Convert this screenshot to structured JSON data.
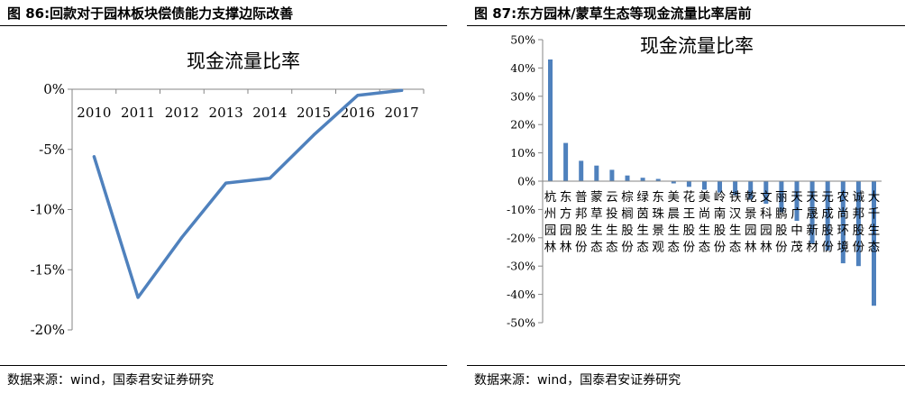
{
  "left": {
    "figure_title": "图 86:回款对于园林板块偿债能力支撑边际改善",
    "source": "数据来源：wind，国泰君安证券研究"
  },
  "right": {
    "figure_title": "图 87:东方园林/蒙草生态等现金流量比率居前",
    "source": "数据来源：wind，国泰君安证券研究"
  },
  "colors": {
    "series": "#4f81bd",
    "axis": "#868686",
    "text": "#000000"
  },
  "chart_data": [
    {
      "type": "line",
      "title": "现金流量比率",
      "xlabel": "",
      "ylabel": "",
      "categories": [
        "2010",
        "2011",
        "2012",
        "2013",
        "2014",
        "2015",
        "2016",
        "2017"
      ],
      "series": [
        {
          "values": [
            -5.6,
            -17.3,
            -12.3,
            -7.8,
            -7.4,
            -3.8,
            -0.5,
            -0.1
          ]
        }
      ],
      "ylim": [
        -20,
        0
      ],
      "yticks": [
        0,
        -5,
        -10,
        -15,
        -20
      ],
      "ytick_labels": [
        "0%",
        "-5%",
        "-10%",
        "-15%",
        "-20%"
      ],
      "x_axis_position": "top",
      "grid": false,
      "legend": "none"
    },
    {
      "type": "bar",
      "title": "现金流量比率",
      "xlabel": "",
      "ylabel": "",
      "categories": [
        "杭州园林",
        "东方园林",
        "普邦股份",
        "蒙草生态",
        "云投生态",
        "棕榈股份",
        "绿茵生态",
        "东珠景观",
        "美晨生态",
        "花王股份",
        "美尚生态",
        "岭南股份",
        "铁汉生态",
        "乾景园林",
        "文科园林",
        "丽鹏股份",
        "天广中茂",
        "天晟新材",
        "元成股份",
        "农尚环境",
        "诚邦股份",
        "大千生态"
      ],
      "series": [
        {
          "values": [
            43.0,
            13.5,
            7.2,
            5.5,
            4.0,
            2.0,
            1.2,
            0.8,
            -0.8,
            -2.0,
            -3.0,
            -4.0,
            -5.0,
            -6.5,
            -8.0,
            -11.0,
            -14.0,
            -22.0,
            -24.5,
            -29.0,
            -30.0,
            -44.0
          ]
        }
      ],
      "ylim": [
        -50,
        50
      ],
      "yticks": [
        50,
        40,
        30,
        20,
        10,
        0,
        -10,
        -20,
        -30,
        -40,
        -50
      ],
      "ytick_labels": [
        "50%",
        "40%",
        "30%",
        "20%",
        "10%",
        "0%",
        "-10%",
        "-20%",
        "-30%",
        "-40%",
        "-50%"
      ],
      "grid": false,
      "legend": "none"
    }
  ]
}
